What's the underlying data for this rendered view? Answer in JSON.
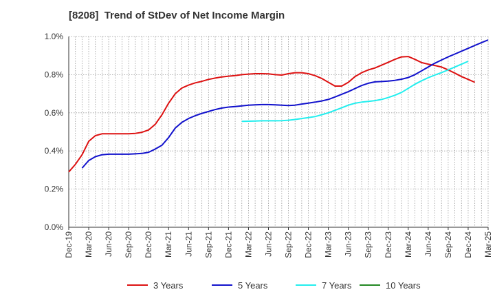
{
  "chart_data": {
    "type": "line",
    "title": "[8208]  Trend of StDev of Net Income Margin",
    "xlabel": "",
    "ylabel": "",
    "ylim": [
      0,
      1.0
    ],
    "y_ticks": [
      "0.0%",
      "0.2%",
      "0.4%",
      "0.6%",
      "0.8%",
      "1.0%"
    ],
    "y_tick_values": [
      0,
      0.2,
      0.4,
      0.6,
      0.8,
      1.0
    ],
    "x_tick_labels": [
      "Dec-19",
      "Mar-20",
      "Jun-20",
      "Sep-20",
      "Dec-20",
      "Mar-21",
      "Jun-21",
      "Sep-21",
      "Dec-21",
      "Mar-22",
      "Jun-22",
      "Sep-22",
      "Dec-22",
      "Mar-23",
      "Jun-23",
      "Sep-23",
      "Dec-23",
      "Mar-24",
      "Jun-24",
      "Sep-24",
      "Dec-24",
      "Mar-25"
    ],
    "grid": true,
    "legend_position": "bottom",
    "series": [
      {
        "name": "3 Years",
        "color": "#dd1111",
        "start_index": 0,
        "values": [
          0.29,
          0.33,
          0.38,
          0.45,
          0.48,
          0.49,
          0.49,
          0.49,
          0.49,
          0.49,
          0.492,
          0.498,
          0.51,
          0.54,
          0.59,
          0.65,
          0.7,
          0.73,
          0.745,
          0.757,
          0.765,
          0.775,
          0.782,
          0.788,
          0.792,
          0.795,
          0.8,
          0.803,
          0.805,
          0.805,
          0.804,
          0.8,
          0.798,
          0.805,
          0.81,
          0.81,
          0.805,
          0.795,
          0.78,
          0.76,
          0.74,
          0.74,
          0.76,
          0.79,
          0.81,
          0.825,
          0.835,
          0.85,
          0.865,
          0.88,
          0.893,
          0.895,
          0.88,
          0.863,
          0.855,
          0.848,
          0.84,
          0.825,
          0.808,
          0.79,
          0.775,
          0.76
        ]
      },
      {
        "name": "5 Years",
        "color": "#1111cc",
        "start_index": 2,
        "values": [
          0.31,
          0.35,
          0.37,
          0.38,
          0.383,
          0.383,
          0.383,
          0.383,
          0.385,
          0.387,
          0.393,
          0.41,
          0.43,
          0.47,
          0.52,
          0.55,
          0.57,
          0.585,
          0.597,
          0.607,
          0.617,
          0.625,
          0.63,
          0.633,
          0.636,
          0.64,
          0.642,
          0.643,
          0.643,
          0.642,
          0.64,
          0.638,
          0.64,
          0.646,
          0.651,
          0.656,
          0.662,
          0.67,
          0.683,
          0.697,
          0.711,
          0.727,
          0.743,
          0.755,
          0.762,
          0.764,
          0.766,
          0.77,
          0.776,
          0.785,
          0.8,
          0.82,
          0.84,
          0.86,
          0.877,
          0.893,
          0.908,
          0.923,
          0.938,
          0.953,
          0.968,
          0.982
        ]
      },
      {
        "name": "7 Years",
        "color": "#22eeee",
        "start_index": 26,
        "values": [
          0.555,
          0.556,
          0.557,
          0.558,
          0.558,
          0.558,
          0.559,
          0.561,
          0.565,
          0.57,
          0.575,
          0.58,
          0.59,
          0.6,
          0.613,
          0.626,
          0.64,
          0.65,
          0.656,
          0.66,
          0.664,
          0.67,
          0.68,
          0.692,
          0.707,
          0.728,
          0.75,
          0.768,
          0.784,
          0.798,
          0.811,
          0.825,
          0.84,
          0.855,
          0.87
        ]
      },
      {
        "name": "10 Years",
        "color": "#228822",
        "start_index": 0,
        "values": []
      }
    ]
  }
}
